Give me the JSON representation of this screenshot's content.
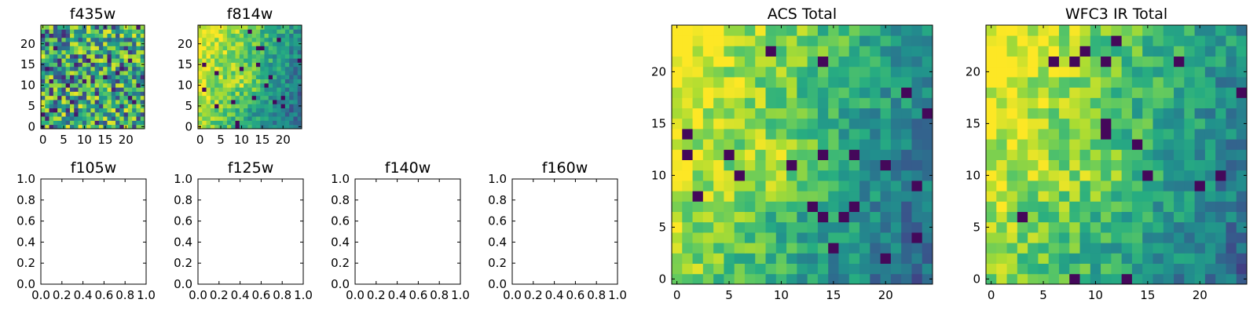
{
  "chart_data": [
    {
      "type": "heatmap",
      "title": "f435w",
      "grid_size": 25,
      "xlim": [
        -0.5,
        24.5
      ],
      "ylim": [
        -0.5,
        24.5
      ],
      "xticks": [
        0,
        5,
        10,
        15,
        20
      ],
      "yticks": [
        0,
        5,
        10,
        15,
        20
      ],
      "pattern": "noise",
      "colormap": "viridis"
    },
    {
      "type": "heatmap",
      "title": "f814w",
      "grid_size": 25,
      "xlim": [
        -0.5,
        24.5
      ],
      "ylim": [
        -0.5,
        24.5
      ],
      "xticks": [
        0,
        5,
        10,
        15,
        20
      ],
      "yticks": [
        0,
        5,
        10,
        15,
        20
      ],
      "pattern": "gradient",
      "colormap": "viridis"
    },
    {
      "type": "scatter",
      "title": "f105w",
      "xlim": [
        0,
        1
      ],
      "ylim": [
        0,
        1
      ],
      "xticks": [
        "0.0",
        "0.2",
        "0.4",
        "0.6",
        "0.8",
        "1.0"
      ],
      "yticks": [
        "0.0",
        "0.2",
        "0.4",
        "0.6",
        "0.8",
        "1.0"
      ],
      "values": []
    },
    {
      "type": "scatter",
      "title": "f125w",
      "xlim": [
        0,
        1
      ],
      "ylim": [
        0,
        1
      ],
      "xticks": [
        "0.0",
        "0.2",
        "0.4",
        "0.6",
        "0.8",
        "1.0"
      ],
      "yticks": [
        "0.0",
        "0.2",
        "0.4",
        "0.6",
        "0.8",
        "1.0"
      ],
      "values": []
    },
    {
      "type": "scatter",
      "title": "f140w",
      "xlim": [
        0,
        1
      ],
      "ylim": [
        0,
        1
      ],
      "xticks": [
        "0.0",
        "0.2",
        "0.4",
        "0.6",
        "0.8",
        "1.0"
      ],
      "yticks": [
        "0.0",
        "0.2",
        "0.4",
        "0.6",
        "0.8",
        "1.0"
      ],
      "values": []
    },
    {
      "type": "scatter",
      "title": "f160w",
      "xlim": [
        0,
        1
      ],
      "ylim": [
        0,
        1
      ],
      "xticks": [
        "0.0",
        "0.2",
        "0.4",
        "0.6",
        "0.8",
        "1.0"
      ],
      "yticks": [
        "0.0",
        "0.2",
        "0.4",
        "0.6",
        "0.8",
        "1.0"
      ],
      "values": []
    },
    {
      "type": "heatmap",
      "title": "ACS Total",
      "grid_size": 25,
      "xlim": [
        -0.5,
        24.5
      ],
      "ylim": [
        -0.5,
        24.5
      ],
      "xticks": [
        0,
        5,
        10,
        15,
        20
      ],
      "yticks": [
        0,
        5,
        10,
        15,
        20
      ],
      "pattern": "gradient",
      "colormap": "viridis"
    },
    {
      "type": "heatmap",
      "title": "WFC3 IR Total",
      "grid_size": 25,
      "xlim": [
        -0.5,
        24.5
      ],
      "ylim": [
        -0.5,
        24.5
      ],
      "xticks": [
        0,
        5,
        10,
        15,
        20
      ],
      "yticks": [
        0,
        5,
        10,
        15,
        20
      ],
      "pattern": "gradient",
      "colormap": "viridis"
    }
  ]
}
